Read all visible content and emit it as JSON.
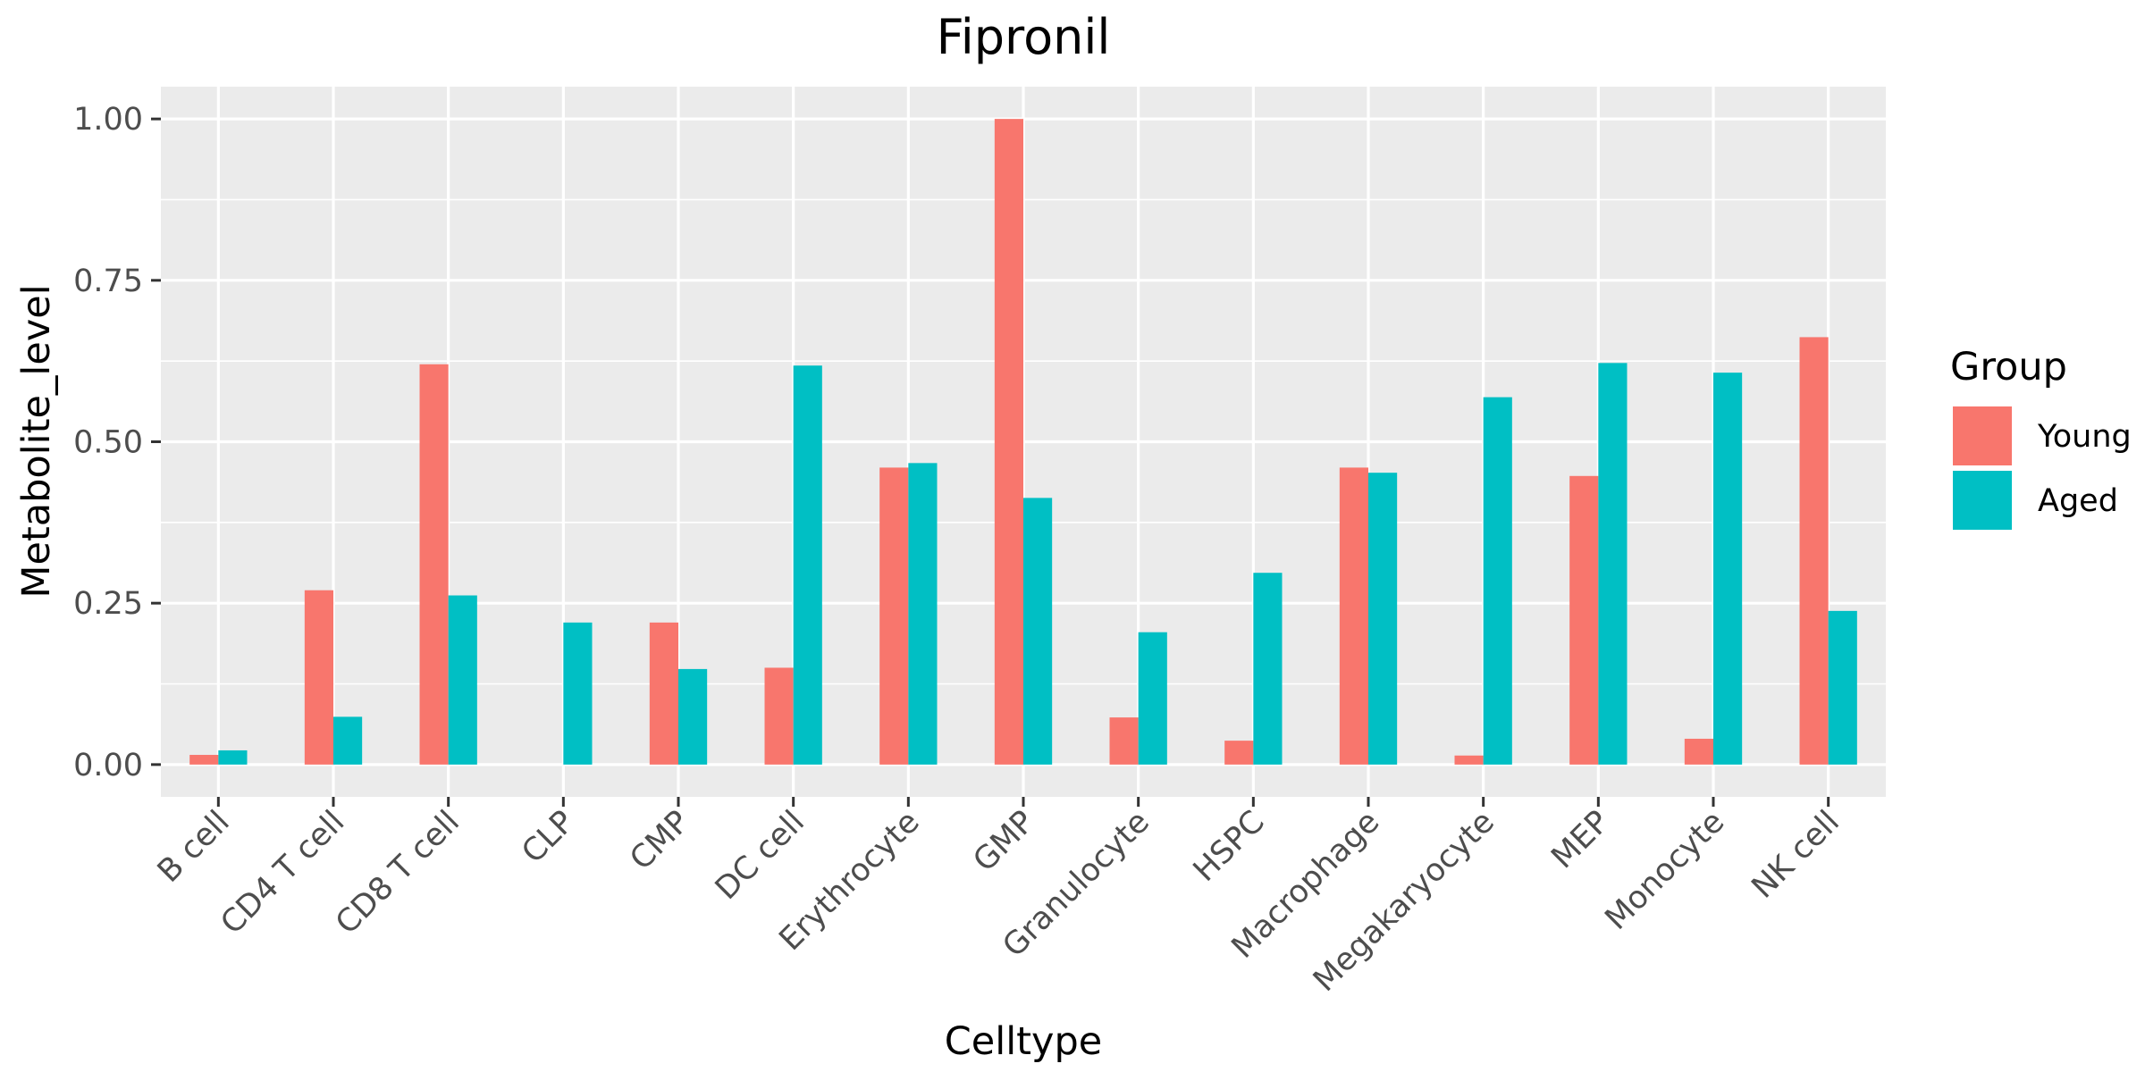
{
  "chart_data": {
    "type": "bar",
    "title": "Fipronil",
    "xlabel": "Celltype",
    "ylabel": "Metabolite_level",
    "ylim": [
      -0.05,
      1.05
    ],
    "yticks": [
      0.0,
      0.25,
      0.5,
      0.75,
      1.0
    ],
    "ytick_labels": [
      "0.00",
      "0.25",
      "0.50",
      "0.75",
      "1.00"
    ],
    "categories": [
      "B cell",
      "CD4 T cell",
      "CD8 T cell",
      "CLP",
      "CMP",
      "DC cell",
      "Erythrocyte",
      "GMP",
      "Granulocyte",
      "HSPC",
      "Macrophage",
      "Megakaryocyte",
      "MEP",
      "Monocyte",
      "NK cell"
    ],
    "series": [
      {
        "name": "Young",
        "color": "#F8766D",
        "values": [
          0.015,
          0.27,
          0.62,
          0.0,
          0.22,
          0.15,
          0.46,
          1.0,
          0.073,
          0.037,
          0.46,
          0.014,
          0.447,
          0.04,
          0.662
        ]
      },
      {
        "name": "Aged",
        "color": "#00BFC4",
        "values": [
          0.022,
          0.074,
          0.262,
          0.22,
          0.148,
          0.618,
          0.467,
          0.413,
          0.205,
          0.297,
          0.452,
          0.569,
          0.622,
          0.607,
          0.238
        ]
      }
    ],
    "legend": {
      "title": "Group",
      "position": "right"
    },
    "grid": true,
    "panel_background": "#EBEBEB",
    "gridline_color": "#FFFFFF"
  }
}
